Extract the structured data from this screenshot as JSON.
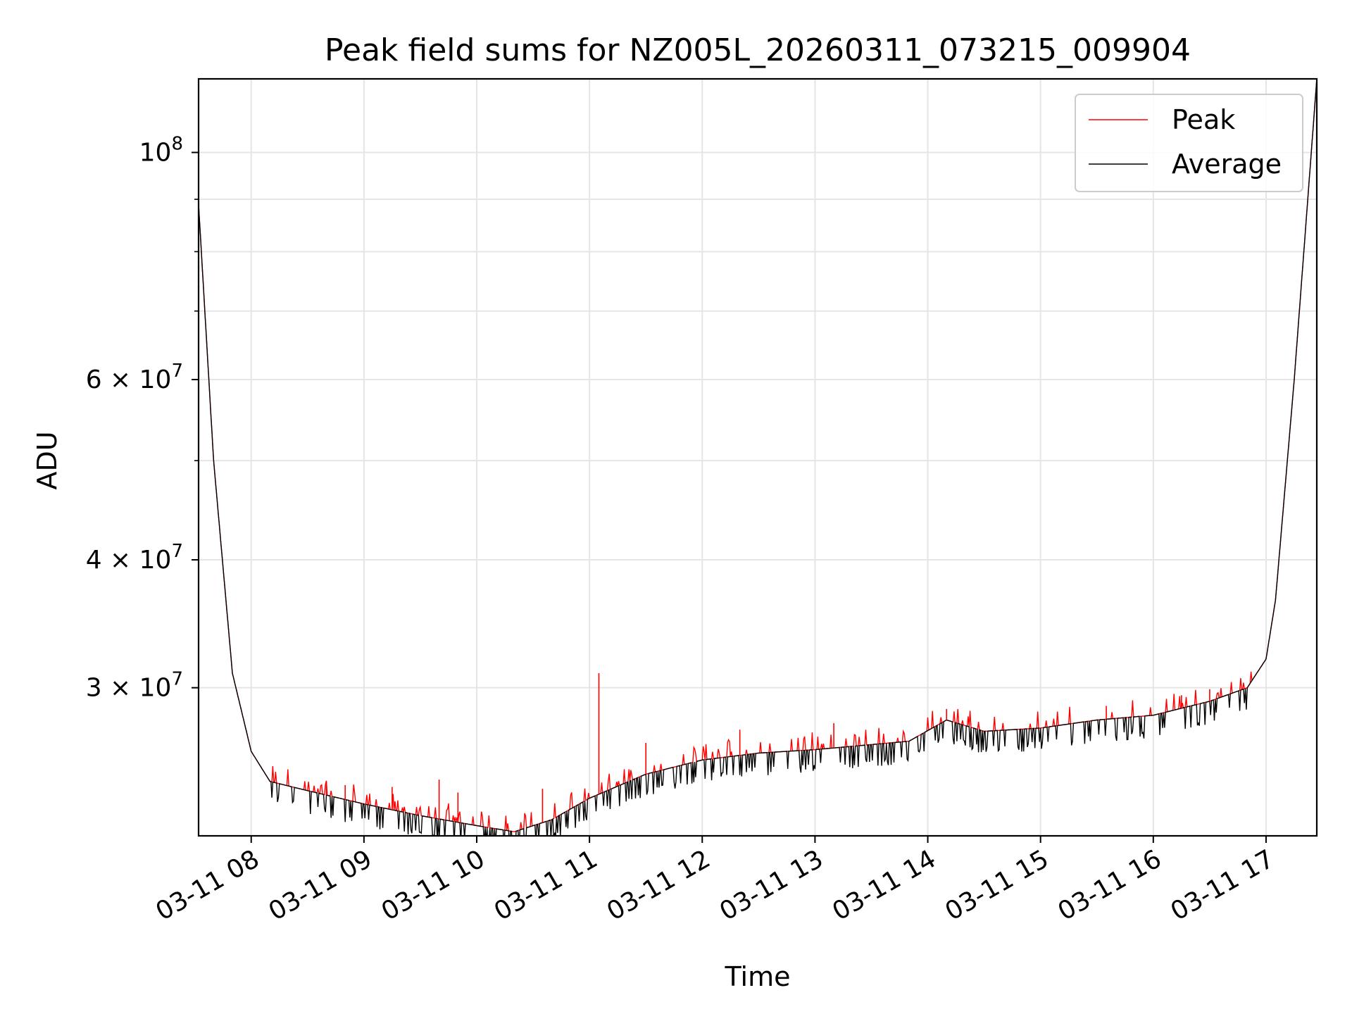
{
  "chart_data": {
    "type": "line",
    "title": "Peak field sums for NZ005L_20260311_073215_009904",
    "xlabel": "Time",
    "ylabel": "ADU",
    "yscale": "log",
    "xlim": [
      "03-11 07:32",
      "03-11 17:27"
    ],
    "ylim": [
      21500000,
      118000000
    ],
    "grid": true,
    "legend_position": "top-right",
    "x_ticks": [
      "03-11 08",
      "03-11 09",
      "03-11 10",
      "03-11 11",
      "03-11 12",
      "03-11 13",
      "03-11 14",
      "03-11 15",
      "03-11 16",
      "03-11 17"
    ],
    "y_ticks": [
      {
        "value": 100000000,
        "base": "10",
        "exp": "8"
      },
      {
        "value": 60000000,
        "mant": "6",
        "base": "10",
        "exp": "7"
      },
      {
        "value": 40000000,
        "mant": "4",
        "base": "10",
        "exp": "7"
      },
      {
        "value": 30000000,
        "mant": "3",
        "base": "10",
        "exp": "7"
      }
    ],
    "y_minor_ticks": [
      50000000,
      70000000,
      80000000,
      90000000
    ],
    "series": [
      {
        "name": "Peak",
        "color": "#ff0000",
        "spikes": [
          [
            "03-11 08:40",
            24300000
          ],
          [
            "03-11 08:50",
            24100000
          ],
          [
            "03-11 09:15",
            24000000
          ],
          [
            "03-11 09:40",
            24400000
          ],
          [
            "03-11 09:50",
            23700000
          ],
          [
            "03-11 10:35",
            23900000
          ],
          [
            "03-11 11:05",
            31000000
          ],
          [
            "03-11 11:30",
            26500000
          ],
          [
            "03-11 12:20",
            27300000
          ],
          [
            "03-11 13:10",
            27700000
          ],
          [
            "03-11 14:10",
            28600000
          ],
          [
            "03-11 15:35",
            28800000
          ],
          [
            "03-11 16:15",
            29500000
          ],
          [
            "03-11 16:30",
            29900000
          ]
        ]
      },
      {
        "name": "Average",
        "color": "#000000",
        "points": [
          [
            "03-11 07:32",
            89000000
          ],
          [
            "03-11 07:40",
            50000000
          ],
          [
            "03-11 07:50",
            31000000
          ],
          [
            "03-11 08:00",
            26000000
          ],
          [
            "03-11 08:10",
            24300000
          ],
          [
            "03-11 08:30",
            23800000
          ],
          [
            "03-11 09:00",
            23100000
          ],
          [
            "03-11 09:30",
            22500000
          ],
          [
            "03-11 10:00",
            22000000
          ],
          [
            "03-11 10:20",
            21700000
          ],
          [
            "03-11 10:40",
            22300000
          ],
          [
            "03-11 11:00",
            23400000
          ],
          [
            "03-11 11:30",
            24700000
          ],
          [
            "03-11 12:00",
            25500000
          ],
          [
            "03-11 12:30",
            25900000
          ],
          [
            "03-11 13:00",
            26100000
          ],
          [
            "03-11 13:30",
            26400000
          ],
          [
            "03-11 13:50",
            26600000
          ],
          [
            "03-11 14:10",
            27900000
          ],
          [
            "03-11 14:30",
            27200000
          ],
          [
            "03-11 15:00",
            27400000
          ],
          [
            "03-11 15:30",
            27900000
          ],
          [
            "03-11 16:00",
            28200000
          ],
          [
            "03-11 16:30",
            29100000
          ],
          [
            "03-11 16:50",
            30000000
          ],
          [
            "03-11 17:00",
            32000000
          ],
          [
            "03-11 17:05",
            36500000
          ],
          [
            "03-11 17:15",
            60000000
          ],
          [
            "03-11 17:27",
            118000000
          ]
        ]
      }
    ]
  }
}
